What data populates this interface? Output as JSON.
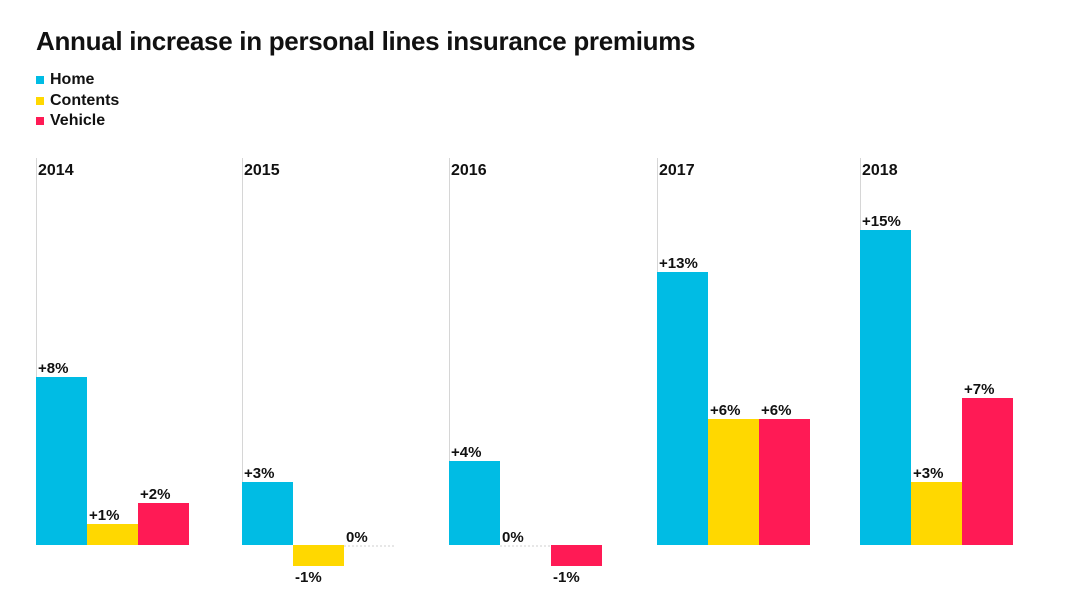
{
  "chart_data": {
    "type": "bar",
    "title": "Annual increase in personal lines insurance premiums",
    "categories": [
      "2014",
      "2015",
      "2016",
      "2017",
      "2018"
    ],
    "series": [
      {
        "name": "Home",
        "color": "#00BCE4",
        "values": [
          8,
          3,
          4,
          13,
          15
        ],
        "labels": [
          "+8%",
          "+3%",
          "+4%",
          "+13%",
          "+15%"
        ]
      },
      {
        "name": "Contents",
        "color": "#FFD800",
        "values": [
          1,
          -1,
          0,
          6,
          3
        ],
        "labels": [
          "+1%",
          "-1%",
          "0%",
          "+6%",
          "+3%"
        ]
      },
      {
        "name": "Vehicle",
        "color": "#FF1A55",
        "values": [
          2,
          0,
          -1,
          6,
          7
        ],
        "labels": [
          "+2%",
          "0%",
          "-1%",
          "+6%",
          "+7%"
        ]
      }
    ],
    "legend_position": "top-left",
    "grid": false
  }
}
